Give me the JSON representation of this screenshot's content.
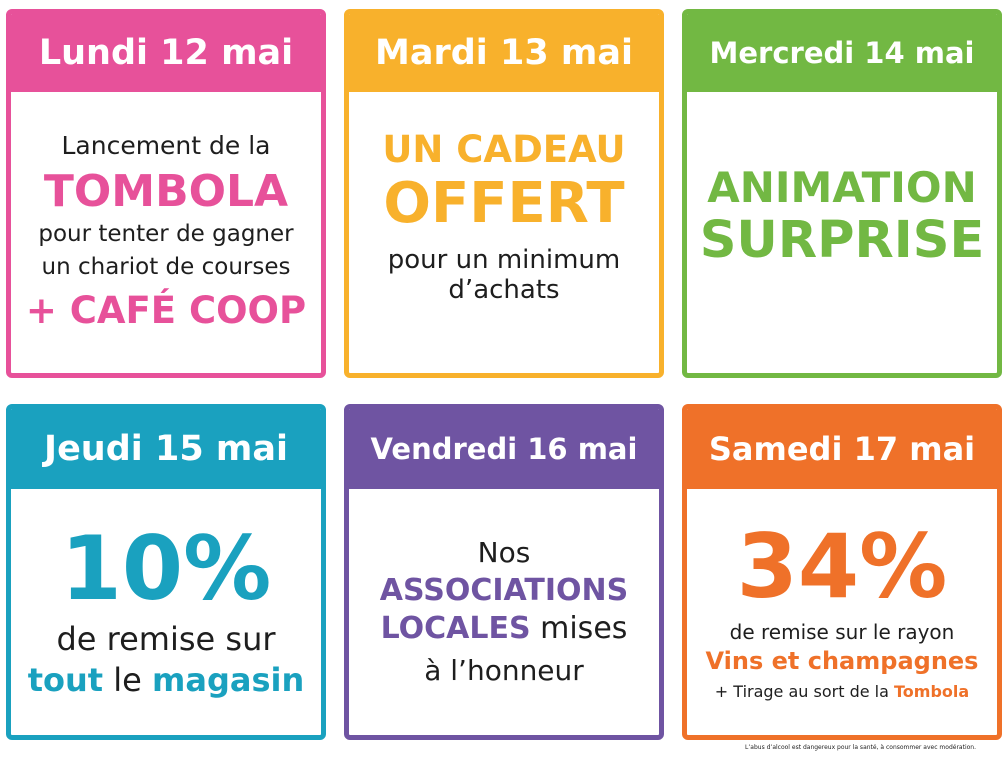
{
  "cards": [
    {
      "day": "Lundi 12 mai",
      "lines": [
        "Lancement de la",
        "TOMBOLA",
        "pour tenter de gagner",
        "un chariot de courses",
        "+ CAFÉ COOP"
      ]
    },
    {
      "day": "Mardi 13 mai",
      "lines": [
        "UN CADEAU",
        "OFFERT",
        "pour un minimum",
        "d’achats"
      ]
    },
    {
      "day": "Mercredi 14 mai",
      "lines": [
        "ANIMATION",
        "SURPRISE"
      ]
    },
    {
      "day": "Jeudi 15 mai",
      "lines": [
        "10%",
        "de remise sur",
        "tout",
        "le",
        "magasin"
      ]
    },
    {
      "day": "Vendredi 16 mai",
      "lines": [
        "Nos",
        "ASSOCIATIONS",
        "LOCALES",
        "mises",
        "à l’honneur"
      ]
    },
    {
      "day": "Samedi 17 mai",
      "lines": [
        "34%",
        "de remise sur le rayon",
        "Vins et champagnes",
        "+ Tirage au sort de la",
        "Tombola"
      ]
    }
  ],
  "colors": {
    "pink": "#e7519a",
    "yellow": "#f8b12c",
    "green": "#72b843",
    "blue": "#1aa1bf",
    "purple": "#6f54a2",
    "orange": "#ef7129"
  },
  "disclaimer": "L’abus d’alcool est dangereux pour la santé, à consommer avec modération."
}
